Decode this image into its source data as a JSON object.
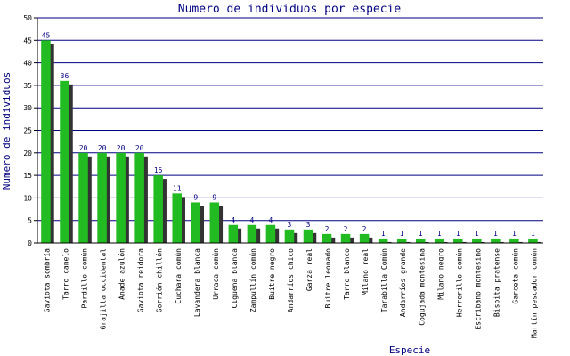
{
  "chart_data": {
    "type": "bar",
    "title": "Numero de individuos por especie",
    "xlabel": "Especie",
    "ylabel": "Numero de individuos",
    "ylim": [
      0,
      50
    ],
    "yticks": [
      0,
      5,
      10,
      15,
      20,
      25,
      30,
      35,
      40,
      45,
      50
    ],
    "grid": true,
    "categories": [
      "Gaviota sombría",
      "Tarro canelo",
      "Pardillo común",
      "Grajilla occidental",
      "Ánade azulón",
      "Gaviota reidora",
      "Gorrión chillón",
      "Cuchara común",
      "Lavandera blanca",
      "Urraca común",
      "Cigueña blanca",
      "Zampullín común",
      "Buitre negro",
      "Andarríos chico",
      "Garza real",
      "Buitre leonado",
      "Tarro blanco",
      "Milano real",
      "Tarabilla Común",
      "Andarríos grande",
      "Cogujada montesina",
      "Milano negro",
      "Herrerillo común",
      "Escribano montesino",
      "Bisbita pratense",
      "Garceta común",
      "Martín pescador común"
    ],
    "values": [
      45,
      36,
      20,
      20,
      20,
      20,
      15,
      11,
      9,
      9,
      4,
      4,
      4,
      3,
      3,
      2,
      2,
      2,
      1,
      1,
      1,
      1,
      1,
      1,
      1,
      1,
      1
    ],
    "colors": {
      "bar": "#22bb22",
      "shadow": "#333333",
      "grid": "#000080",
      "text": "#000080",
      "plot_bg": "#ffffff"
    }
  }
}
